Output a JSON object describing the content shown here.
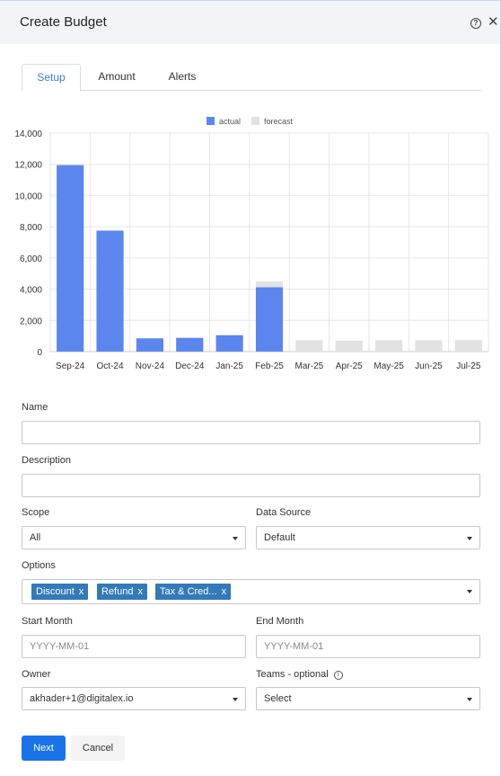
{
  "dialog": {
    "title": "Create Budget"
  },
  "icons": {
    "help": "question-circle-icon",
    "close": "close-x-icon",
    "info": "info-circle-icon",
    "caret": "caret-down-icon"
  },
  "tabs": [
    {
      "label": "Setup",
      "active": true
    },
    {
      "label": "Amount",
      "active": false
    },
    {
      "label": "Alerts",
      "active": false
    }
  ],
  "chart_data": {
    "type": "bar",
    "stacked": true,
    "categories": [
      "Sep-24",
      "Oct-24",
      "Nov-24",
      "Dec-24",
      "Jan-25",
      "Feb-25",
      "Mar-25",
      "Apr-25",
      "May-25",
      "Jun-25",
      "Jul-25"
    ],
    "series": [
      {
        "name": "actual",
        "color": "#5b86ee",
        "values": [
          11950,
          7750,
          850,
          880,
          1050,
          4120,
          0,
          0,
          0,
          0,
          0
        ]
      },
      {
        "name": "forecast",
        "color": "#e2e2e2",
        "values": [
          0,
          0,
          0,
          0,
          0,
          380,
          730,
          700,
          730,
          730,
          740
        ]
      }
    ],
    "ylim": [
      0,
      14000
    ],
    "yticks": [
      0,
      2000,
      4000,
      6000,
      8000,
      10000,
      12000,
      14000
    ],
    "ytick_labels": [
      "0",
      "2,000",
      "4,000",
      "6,000",
      "8,000",
      "10,000",
      "12,000",
      "14,000"
    ],
    "grid": true,
    "legend_position": "top-center"
  },
  "form": {
    "name": {
      "label": "Name",
      "value": ""
    },
    "description": {
      "label": "Description",
      "value": ""
    },
    "scope": {
      "label": "Scope",
      "value": "All"
    },
    "data_source": {
      "label": "Data Source",
      "value": "Default"
    },
    "options": {
      "label": "Options",
      "chips": [
        "Discount",
        "Refund",
        "Tax & Cred..."
      ],
      "chip_remove": "x"
    },
    "start_month": {
      "label": "Start Month",
      "placeholder": "YYYY-MM-01"
    },
    "end_month": {
      "label": "End Month",
      "placeholder": "YYYY-MM-01"
    },
    "owner": {
      "label": "Owner",
      "value": "akhader+1@digitalex.io"
    },
    "teams": {
      "label": "Teams - optional",
      "value": "Select"
    }
  },
  "buttons": {
    "next": "Next",
    "cancel": "Cancel"
  }
}
